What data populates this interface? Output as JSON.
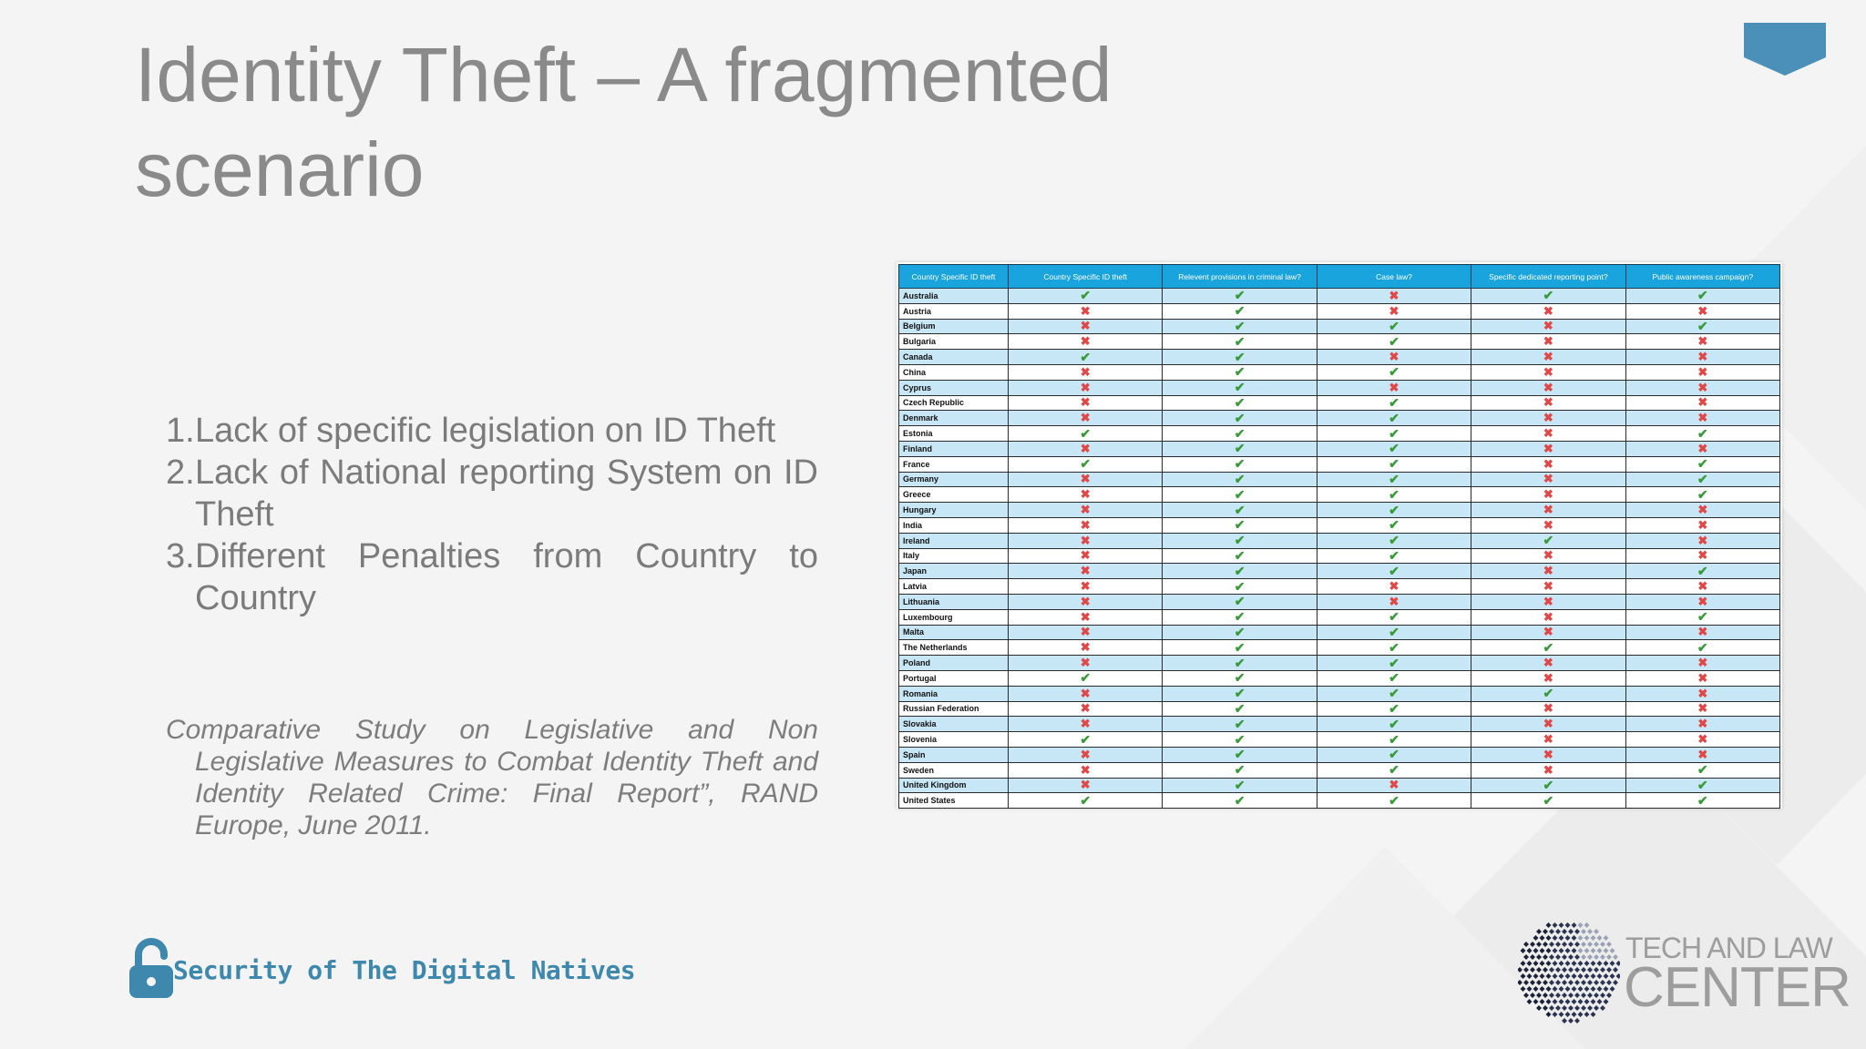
{
  "slide": {
    "title": "Identity Theft – A fragmented scenario",
    "points": [
      {
        "num": "1.",
        "text": "Lack of specific legislation on ID Theft"
      },
      {
        "num": "2.",
        "text": "Lack of National reporting System on ID Theft"
      },
      {
        "num": "3.",
        "text": "Different Penalties from Country to Country"
      }
    ],
    "citation": "Comparative Study on Legislative and Non Legislative Measures to Combat Identity Theft and Identity Related Crime: Final Report”, RAND Europe, June 2011."
  },
  "table": {
    "headers": [
      "Country Specific ID theft",
      "Country Specific ID theft",
      "Relevent provisions in criminal law?",
      "Case law?",
      "Specific dedicated reporting point?",
      "Public awareness campaign?"
    ],
    "rows": [
      {
        "country": "Australia",
        "v": [
          1,
          1,
          0,
          1,
          1
        ]
      },
      {
        "country": "Austria",
        "v": [
          0,
          1,
          0,
          0,
          0
        ]
      },
      {
        "country": "Belgium",
        "v": [
          0,
          1,
          1,
          0,
          1
        ]
      },
      {
        "country": "Bulgaria",
        "v": [
          0,
          1,
          1,
          0,
          0
        ]
      },
      {
        "country": "Canada",
        "v": [
          1,
          1,
          0,
          0,
          0
        ]
      },
      {
        "country": "China",
        "v": [
          0,
          1,
          1,
          0,
          0
        ]
      },
      {
        "country": "Cyprus",
        "v": [
          0,
          1,
          0,
          0,
          0
        ]
      },
      {
        "country": "Czech Republic",
        "v": [
          0,
          1,
          1,
          0,
          0
        ]
      },
      {
        "country": "Denmark",
        "v": [
          0,
          1,
          1,
          0,
          0
        ]
      },
      {
        "country": "Estonia",
        "v": [
          1,
          1,
          1,
          0,
          1
        ]
      },
      {
        "country": "Finland",
        "v": [
          0,
          1,
          1,
          0,
          0
        ]
      },
      {
        "country": "France",
        "v": [
          1,
          1,
          1,
          0,
          1
        ]
      },
      {
        "country": "Germany",
        "v": [
          0,
          1,
          1,
          0,
          1
        ]
      },
      {
        "country": "Greece",
        "v": [
          0,
          1,
          1,
          0,
          1
        ]
      },
      {
        "country": "Hungary",
        "v": [
          0,
          1,
          1,
          0,
          0
        ]
      },
      {
        "country": "India",
        "v": [
          0,
          1,
          1,
          0,
          0
        ]
      },
      {
        "country": "Ireland",
        "v": [
          0,
          1,
          1,
          1,
          0
        ]
      },
      {
        "country": "Italy",
        "v": [
          0,
          1,
          1,
          0,
          0
        ]
      },
      {
        "country": "Japan",
        "v": [
          0,
          1,
          1,
          0,
          1
        ]
      },
      {
        "country": "Latvia",
        "v": [
          0,
          1,
          0,
          0,
          0
        ]
      },
      {
        "country": "Lithuania",
        "v": [
          0,
          1,
          0,
          0,
          0
        ]
      },
      {
        "country": "Luxembourg",
        "v": [
          0,
          1,
          1,
          0,
          1
        ]
      },
      {
        "country": "Malta",
        "v": [
          0,
          1,
          1,
          0,
          0
        ]
      },
      {
        "country": "The Netherlands",
        "v": [
          0,
          1,
          1,
          1,
          1
        ]
      },
      {
        "country": "Poland",
        "v": [
          0,
          1,
          1,
          0,
          0
        ]
      },
      {
        "country": "Portugal",
        "v": [
          1,
          1,
          1,
          0,
          0
        ]
      },
      {
        "country": "Romania",
        "v": [
          0,
          1,
          1,
          1,
          0
        ]
      },
      {
        "country": "Russian Federation",
        "v": [
          0,
          1,
          1,
          0,
          0
        ]
      },
      {
        "country": "Slovakia",
        "v": [
          0,
          1,
          1,
          0,
          0
        ]
      },
      {
        "country": "Slovenia",
        "v": [
          1,
          1,
          1,
          0,
          0
        ]
      },
      {
        "country": "Spain",
        "v": [
          0,
          1,
          1,
          0,
          0
        ]
      },
      {
        "country": "Sweden",
        "v": [
          0,
          1,
          1,
          0,
          1
        ]
      },
      {
        "country": "United Kingdom",
        "v": [
          0,
          1,
          0,
          1,
          1
        ]
      },
      {
        "country": "United States",
        "v": [
          1,
          1,
          1,
          1,
          1
        ]
      }
    ],
    "check_mark": "✔",
    "cross_mark": "✖",
    "colors": {
      "header": "#1aa4dd",
      "alt_row": "#c7e6f6",
      "check": "#3a9a3a",
      "cross": "#e04848"
    }
  },
  "footer": {
    "brand_text": "Security of The Digital Natives",
    "logo_line1": "TECH AND LAW",
    "logo_line2": "CENTER"
  },
  "theme": {
    "title_color": "#8a8a8a",
    "accent": "#3f88ad",
    "ribbon": "#4a90b8"
  }
}
